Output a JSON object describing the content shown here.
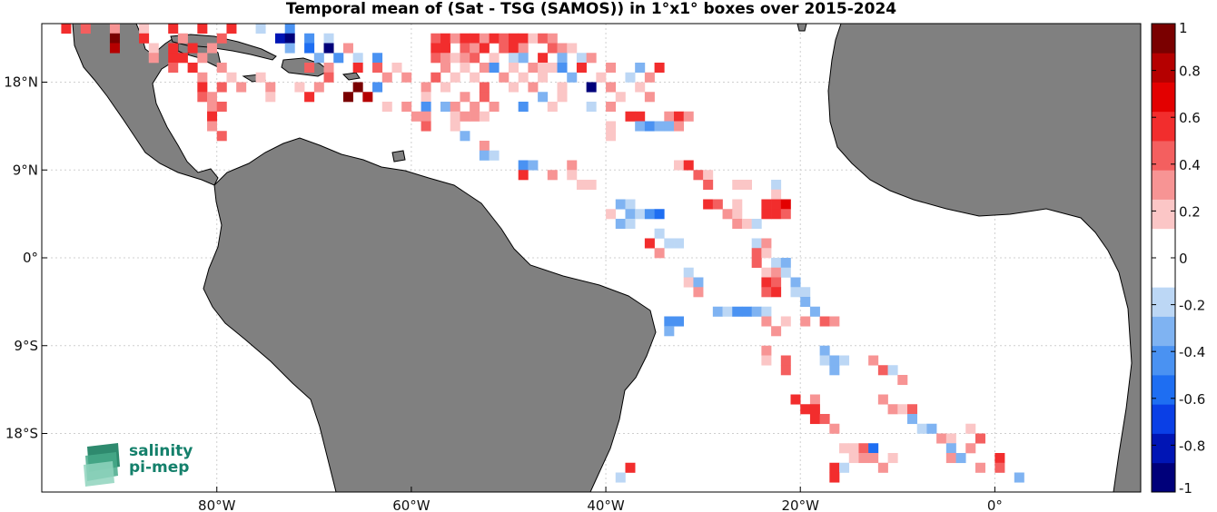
{
  "title": "Temporal mean of (Sat - TSG (SAMOS)) in 1°x1° boxes over 2015-2024",
  "map": {
    "lon_range": [
      -98,
      15
    ],
    "lat_range": [
      -24,
      24
    ],
    "land_color": "#808080",
    "ocean_color": "#ffffff",
    "grid": true,
    "lon_ticks": [
      {
        "value": -80,
        "label": "80°W"
      },
      {
        "value": -60,
        "label": "60°W"
      },
      {
        "value": -40,
        "label": "40°W"
      },
      {
        "value": -20,
        "label": "20°W"
      },
      {
        "value": 0,
        "label": "0°"
      }
    ],
    "lat_ticks": [
      {
        "value": 18,
        "label": "18°N"
      },
      {
        "value": 9,
        "label": "9°N"
      },
      {
        "value": 0,
        "label": "0°"
      },
      {
        "value": -9,
        "label": "9°S"
      },
      {
        "value": -18,
        "label": "18°S"
      }
    ]
  },
  "colorbar": {
    "range": [
      -1,
      1
    ],
    "ticks": [
      "1",
      "0.8",
      "0.6",
      "0.4",
      "0.2",
      "0",
      "-0.2",
      "-0.4",
      "-0.6",
      "-0.8",
      "-1"
    ],
    "tick_values": [
      1,
      0.8,
      0.6,
      0.4,
      0.2,
      0,
      -0.2,
      -0.4,
      -0.6,
      -0.8,
      -1
    ],
    "colors": [
      "#00007a",
      "#0015b5",
      "#0a3fe6",
      "#1e6ef2",
      "#4a92f2",
      "#7fb3f2",
      "#bcd7f5",
      "#ffffff",
      "#ffffff",
      "#fbc6c6",
      "#f79494",
      "#f45f5f",
      "#f22d2d",
      "#e30000",
      "#b50000",
      "#7a0000"
    ]
  },
  "chart_data": {
    "type": "heatmap",
    "title": "Temporal mean of (Sat - TSG (SAMOS)) in 1°x1° boxes over 2015-2024",
    "xlabel": "",
    "ylabel": "",
    "vmin": -1,
    "vmax": 1,
    "cell_size_deg": 1,
    "cells": [
      [
        -96,
        23,
        0.6
      ],
      [
        -94,
        23,
        0.4
      ],
      [
        -91,
        23,
        0.3
      ],
      [
        -88,
        23,
        0.2
      ],
      [
        -85,
        23,
        0.5
      ],
      [
        -82,
        23,
        0.6
      ],
      [
        -79,
        23,
        0.5
      ],
      [
        -76,
        23,
        -0.2
      ],
      [
        -73,
        23,
        -0.5
      ],
      [
        -91,
        22,
        0.9
      ],
      [
        -88,
        22,
        0.5
      ],
      [
        -84,
        22,
        0.3
      ],
      [
        -80,
        22,
        0.4
      ],
      [
        -74,
        22,
        -0.8
      ],
      [
        -73,
        22,
        -0.9
      ],
      [
        -71,
        22,
        -0.4
      ],
      [
        -69,
        22,
        -0.2
      ],
      [
        -91,
        21,
        0.8
      ],
      [
        -87,
        21,
        0.2
      ],
      [
        -85,
        21,
        0.5
      ],
      [
        -83,
        21,
        0.6
      ],
      [
        -81,
        21,
        0.3
      ],
      [
        -73,
        21,
        -0.3
      ],
      [
        -71,
        21,
        -0.6
      ],
      [
        -69,
        21,
        -0.9
      ],
      [
        -67,
        21,
        0.3
      ],
      [
        -87,
        20,
        0.3
      ],
      [
        -85,
        20,
        0.5
      ],
      [
        -84,
        20,
        0.6
      ],
      [
        -82,
        20,
        0.3
      ],
      [
        -70,
        20,
        -0.3
      ],
      [
        -68,
        20,
        -0.5
      ],
      [
        -66,
        20,
        -0.2
      ],
      [
        -64,
        20,
        -0.4
      ],
      [
        -85,
        19,
        0.4
      ],
      [
        -83,
        19,
        0.5
      ],
      [
        -80,
        19,
        0.3
      ],
      [
        -71,
        19,
        0.4
      ],
      [
        -69,
        19,
        0.3
      ],
      [
        -66,
        19,
        0.6
      ],
      [
        -64,
        19,
        0.4
      ],
      [
        -62,
        19,
        0.2
      ],
      [
        -82,
        18,
        0.3
      ],
      [
        -79,
        18,
        0.2
      ],
      [
        -76,
        18,
        0.2
      ],
      [
        -69,
        18,
        0.4
      ],
      [
        -63,
        18,
        0.3
      ],
      [
        -61,
        18,
        0.3
      ],
      [
        -82,
        17,
        0.5
      ],
      [
        -80,
        17,
        0.4
      ],
      [
        -78,
        17,
        0.3
      ],
      [
        -75,
        17,
        0.3
      ],
      [
        -72,
        17,
        0.2
      ],
      [
        -70,
        17,
        0.3
      ],
      [
        -66,
        17,
        0.9
      ],
      [
        -64,
        17,
        -0.5
      ],
      [
        -82,
        16,
        0.4
      ],
      [
        -81,
        16,
        0.3
      ],
      [
        -75,
        16,
        0.2
      ],
      [
        -71,
        16,
        0.5
      ],
      [
        -67,
        16,
        0.9
      ],
      [
        -65,
        16,
        0.8
      ],
      [
        -81,
        15,
        0.3
      ],
      [
        -80,
        15,
        0.4
      ],
      [
        -63,
        15,
        0.2
      ],
      [
        -61,
        15,
        0.3
      ],
      [
        -81,
        14,
        0.5
      ],
      [
        -60,
        14,
        0.3
      ],
      [
        -81,
        13,
        0.3
      ],
      [
        -80,
        12,
        0.4
      ],
      [
        -58,
        22,
        0.4
      ],
      [
        -57,
        22,
        0.5
      ],
      [
        -56,
        22,
        0.3
      ],
      [
        -55,
        22,
        0.5
      ],
      [
        -54,
        22,
        0.5
      ],
      [
        -53,
        22,
        0.3
      ],
      [
        -52,
        22,
        0.6
      ],
      [
        -51,
        22,
        0.4
      ],
      [
        -50,
        22,
        0.6
      ],
      [
        -49,
        22,
        0.5
      ],
      [
        -48,
        22,
        0.2
      ],
      [
        -47,
        22,
        0.4
      ],
      [
        -46,
        22,
        0.3
      ],
      [
        -58,
        21,
        0.5
      ],
      [
        -57,
        21,
        0.5
      ],
      [
        -55,
        21,
        0.4
      ],
      [
        -54,
        21,
        0.3
      ],
      [
        -53,
        21,
        0.5
      ],
      [
        -51,
        21,
        0.4
      ],
      [
        -50,
        21,
        0.6
      ],
      [
        -49,
        21,
        0.3
      ],
      [
        -46,
        21,
        0.4
      ],
      [
        -45,
        21,
        0.3
      ],
      [
        -44,
        21,
        0.2
      ],
      [
        -58,
        20,
        0.4
      ],
      [
        -57,
        20,
        0.3
      ],
      [
        -56,
        20,
        0.2
      ],
      [
        -55,
        20,
        0.3
      ],
      [
        -54,
        20,
        0.4
      ],
      [
        -52,
        20,
        0.2
      ],
      [
        -50,
        20,
        -0.2
      ],
      [
        -49,
        20,
        -0.3
      ],
      [
        -47,
        20,
        0.5
      ],
      [
        -45,
        20,
        -0.3
      ],
      [
        -43,
        20,
        -0.2
      ],
      [
        -42,
        20,
        0.3
      ],
      [
        -57,
        19,
        0.3
      ],
      [
        -55,
        19,
        0.2
      ],
      [
        -53,
        19,
        0.3
      ],
      [
        -52,
        19,
        -0.4
      ],
      [
        -50,
        19,
        0.2
      ],
      [
        -48,
        19,
        0.3
      ],
      [
        -47,
        19,
        0.2
      ],
      [
        -46,
        19,
        0.2
      ],
      [
        -45,
        19,
        -0.4
      ],
      [
        -43,
        19,
        0.5
      ],
      [
        -40,
        19,
        0.3
      ],
      [
        -37,
        19,
        -0.3
      ],
      [
        -35,
        19,
        0.5
      ],
      [
        -58,
        18,
        0.4
      ],
      [
        -56,
        18,
        0.2
      ],
      [
        -54,
        18,
        0.2
      ],
      [
        -51,
        18,
        0.3
      ],
      [
        -49,
        18,
        0.2
      ],
      [
        -47,
        18,
        0.2
      ],
      [
        -44,
        18,
        -0.3
      ],
      [
        -41,
        18,
        0.2
      ],
      [
        -38,
        18,
        -0.2
      ],
      [
        -36,
        18,
        0.3
      ],
      [
        -59,
        17,
        0.3
      ],
      [
        -57,
        17,
        0.2
      ],
      [
        -53,
        17,
        0.4
      ],
      [
        -50,
        17,
        0.2
      ],
      [
        -48,
        17,
        0.3
      ],
      [
        -45,
        17,
        0.2
      ],
      [
        -42,
        17,
        -0.9
      ],
      [
        -40,
        17,
        0.3
      ],
      [
        -37,
        17,
        0.2
      ],
      [
        -59,
        16,
        0.2
      ],
      [
        -55,
        16,
        0.3
      ],
      [
        -53,
        16,
        0.4
      ],
      [
        -47,
        16,
        -0.3
      ],
      [
        -45,
        16,
        0.2
      ],
      [
        -39,
        16,
        0.2
      ],
      [
        -36,
        16,
        0.3
      ],
      [
        -59,
        15,
        -0.4
      ],
      [
        -57,
        15,
        -0.3
      ],
      [
        -56,
        15,
        0.3
      ],
      [
        -54,
        15,
        0.3
      ],
      [
        -52,
        15,
        0.3
      ],
      [
        -49,
        15,
        -0.4
      ],
      [
        -46,
        15,
        0.2
      ],
      [
        -42,
        15,
        -0.2
      ],
      [
        -40,
        15,
        0.3
      ],
      [
        -59,
        14,
        0.3
      ],
      [
        -56,
        14,
        0.2
      ],
      [
        -55,
        14,
        0.3
      ],
      [
        -54,
        14,
        0.3
      ],
      [
        -53,
        14,
        0.2
      ],
      [
        -38,
        14,
        0.5
      ],
      [
        -37,
        14,
        0.6
      ],
      [
        -34,
        14,
        0.3
      ],
      [
        -33,
        14,
        0.5
      ],
      [
        -32,
        14,
        0.3
      ],
      [
        -59,
        13,
        0.4
      ],
      [
        -56,
        13,
        0.2
      ],
      [
        -40,
        13,
        0.2
      ],
      [
        -37,
        13,
        -0.3
      ],
      [
        -36,
        13,
        -0.4
      ],
      [
        -35,
        13,
        -0.3
      ],
      [
        -34,
        13,
        -0.3
      ],
      [
        -33,
        13,
        0.3
      ],
      [
        -55,
        12,
        -0.3
      ],
      [
        -40,
        12,
        0.2
      ],
      [
        -53,
        11,
        0.3
      ],
      [
        -53,
        10,
        -0.3
      ],
      [
        -52,
        10,
        -0.2
      ],
      [
        -49,
        9,
        -0.5
      ],
      [
        -48,
        9,
        -0.3
      ],
      [
        -44,
        9,
        0.3
      ],
      [
        -33,
        9,
        0.2
      ],
      [
        -32,
        9,
        0.6
      ],
      [
        -49,
        8,
        0.5
      ],
      [
        -46,
        8,
        0.3
      ],
      [
        -44,
        8,
        0.2
      ],
      [
        -31,
        8,
        0.4
      ],
      [
        -30,
        8,
        0.2
      ],
      [
        -43,
        7,
        0.2
      ],
      [
        -42,
        7,
        0.2
      ],
      [
        -30,
        7,
        0.4
      ],
      [
        -27,
        7,
        0.2
      ],
      [
        -26,
        7,
        0.2
      ],
      [
        -23,
        7,
        -0.2
      ],
      [
        -23,
        6,
        0.2
      ],
      [
        -39,
        5,
        -0.3
      ],
      [
        -38,
        5,
        -0.2
      ],
      [
        -30,
        5,
        0.5
      ],
      [
        -29,
        5,
        0.4
      ],
      [
        -27,
        5,
        0.2
      ],
      [
        -24,
        5,
        0.5
      ],
      [
        -23,
        5,
        0.5
      ],
      [
        -22,
        5,
        0.7
      ],
      [
        -40,
        4,
        0.2
      ],
      [
        -38,
        4,
        -0.3
      ],
      [
        -37,
        4,
        -0.2
      ],
      [
        -36,
        4,
        -0.5
      ],
      [
        -35,
        4,
        -0.6
      ],
      [
        -28,
        4,
        0.3
      ],
      [
        -27,
        4,
        0.2
      ],
      [
        -24,
        4,
        0.6
      ],
      [
        -23,
        4,
        0.5
      ],
      [
        -22,
        4,
        0.4
      ],
      [
        -39,
        3,
        -0.3
      ],
      [
        -38,
        3,
        -0.2
      ],
      [
        -27,
        3,
        0.3
      ],
      [
        -26,
        3,
        0.2
      ],
      [
        -25,
        3,
        -0.2
      ],
      [
        -35,
        2,
        -0.2
      ],
      [
        -36,
        1,
        0.5
      ],
      [
        -34,
        1,
        -0.2
      ],
      [
        -33,
        1,
        -0.2
      ],
      [
        -25,
        1,
        -0.2
      ],
      [
        -24,
        1,
        0.3
      ],
      [
        -35,
        0,
        0.3
      ],
      [
        -25,
        0,
        0.4
      ],
      [
        -24,
        0,
        0.2
      ],
      [
        -25,
        -1,
        0.4
      ],
      [
        -23,
        -1,
        -0.2
      ],
      [
        -22,
        -1,
        -0.3
      ],
      [
        -32,
        -2,
        -0.2
      ],
      [
        -24,
        -2,
        0.2
      ],
      [
        -23,
        -2,
        0.3
      ],
      [
        -22,
        -2,
        -0.2
      ],
      [
        -32,
        -3,
        0.2
      ],
      [
        -31,
        -3,
        -0.3
      ],
      [
        -24,
        -3,
        0.5
      ],
      [
        -23,
        -3,
        0.4
      ],
      [
        -21,
        -3,
        -0.3
      ],
      [
        -31,
        -4,
        0.3
      ],
      [
        -24,
        -4,
        0.4
      ],
      [
        -23,
        -4,
        0.5
      ],
      [
        -21,
        -4,
        -0.2
      ],
      [
        -20,
        -4,
        -0.2
      ],
      [
        -20,
        -5,
        -0.3
      ],
      [
        -29,
        -6,
        -0.3
      ],
      [
        -28,
        -6,
        -0.2
      ],
      [
        -27,
        -6,
        -0.4
      ],
      [
        -26,
        -6,
        -0.4
      ],
      [
        -25,
        -6,
        -0.3
      ],
      [
        -24,
        -6,
        -0.2
      ],
      [
        -19,
        -6,
        -0.3
      ],
      [
        -34,
        -7,
        -0.4
      ],
      [
        -33,
        -7,
        -0.5
      ],
      [
        -24,
        -7,
        0.3
      ],
      [
        -22,
        -7,
        0.2
      ],
      [
        -20,
        -7,
        0.3
      ],
      [
        -18,
        -7,
        0.4
      ],
      [
        -17,
        -7,
        0.3
      ],
      [
        -34,
        -8,
        -0.3
      ],
      [
        -23,
        -8,
        0.3
      ],
      [
        -24,
        -10,
        0.3
      ],
      [
        -18,
        -10,
        -0.3
      ],
      [
        -24,
        -11,
        0.2
      ],
      [
        -22,
        -11,
        0.4
      ],
      [
        -18,
        -11,
        -0.2
      ],
      [
        -17,
        -11,
        -0.3
      ],
      [
        -16,
        -11,
        -0.2
      ],
      [
        -13,
        -11,
        0.3
      ],
      [
        -22,
        -12,
        0.4
      ],
      [
        -17,
        -12,
        -0.3
      ],
      [
        -12,
        -12,
        0.4
      ],
      [
        -11,
        -12,
        -0.2
      ],
      [
        -10,
        -13,
        0.3
      ],
      [
        -21,
        -15,
        0.6
      ],
      [
        -19,
        -15,
        0.3
      ],
      [
        -12,
        -15,
        0.3
      ],
      [
        -20,
        -16,
        0.6
      ],
      [
        -19,
        -16,
        0.5
      ],
      [
        -11,
        -16,
        0.3
      ],
      [
        -10,
        -16,
        0.2
      ],
      [
        -9,
        -16,
        0.4
      ],
      [
        -19,
        -17,
        0.6
      ],
      [
        -18,
        -17,
        0.4
      ],
      [
        -9,
        -17,
        -0.3
      ],
      [
        -17,
        -18,
        0.3
      ],
      [
        -8,
        -18,
        -0.2
      ],
      [
        -7,
        -18,
        -0.3
      ],
      [
        -3,
        -18,
        0.2
      ],
      [
        -6,
        -19,
        0.3
      ],
      [
        -5,
        -19,
        0.2
      ],
      [
        -2,
        -19,
        0.4
      ],
      [
        -16,
        -20,
        0.2
      ],
      [
        -15,
        -20,
        0.2
      ],
      [
        -14,
        -20,
        0.4
      ],
      [
        -13,
        -20,
        -0.6
      ],
      [
        -5,
        -20,
        -0.3
      ],
      [
        -3,
        -20,
        0.3
      ],
      [
        -15,
        -21,
        0.2
      ],
      [
        -14,
        -21,
        0.3
      ],
      [
        -13,
        -21,
        0.3
      ],
      [
        -11,
        -21,
        0.2
      ],
      [
        -5,
        -21,
        0.3
      ],
      [
        -4,
        -21,
        -0.3
      ],
      [
        0,
        -21,
        0.6
      ],
      [
        -38,
        -22,
        0.6
      ],
      [
        -17,
        -22,
        0.6
      ],
      [
        -16,
        -22,
        -0.2
      ],
      [
        -12,
        -22,
        0.3
      ],
      [
        -2,
        -22,
        0.3
      ],
      [
        0,
        -22,
        0.4
      ],
      [
        -39,
        -23,
        -0.2
      ],
      [
        -17,
        -23,
        0.5
      ],
      [
        2,
        -23,
        -0.3
      ]
    ]
  }
}
